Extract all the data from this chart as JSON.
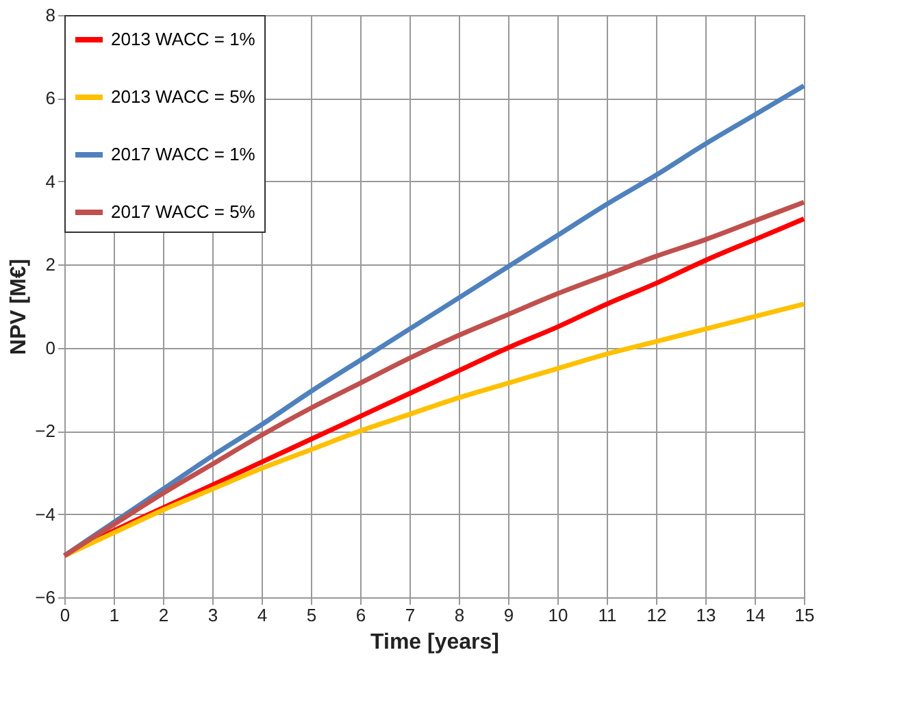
{
  "chart_data": {
    "type": "line",
    "xlabel": "Time [years]",
    "ylabel": "NPV [M€]",
    "x": [
      0,
      1,
      2,
      3,
      4,
      5,
      6,
      7,
      8,
      9,
      10,
      11,
      12,
      13,
      14,
      15
    ],
    "series": [
      {
        "name": "2013 WACC = 1%",
        "color": "#ff0000",
        "values": [
          -5,
          -4.4,
          -3.85,
          -3.3,
          -2.75,
          -2.2,
          -1.65,
          -1.1,
          -0.55,
          0,
          0.5,
          1.05,
          1.55,
          2.1,
          2.6,
          3.1
        ]
      },
      {
        "name": "2013 WACC = 5%",
        "color": "#ffc000",
        "values": [
          -5,
          -4.45,
          -3.9,
          -3.4,
          -2.9,
          -2.45,
          -2.0,
          -1.6,
          -1.2,
          -0.85,
          -0.5,
          -0.15,
          0.15,
          0.45,
          0.75,
          1.05
        ]
      },
      {
        "name": "2017 WACC = 1%",
        "color": "#4f81bd",
        "values": [
          -5,
          -4.2,
          -3.4,
          -2.6,
          -1.85,
          -1.05,
          -0.3,
          0.45,
          1.2,
          1.95,
          2.7,
          3.45,
          4.15,
          4.9,
          5.6,
          6.3
        ]
      },
      {
        "name": "2017 WACC = 5%",
        "color": "#c0504d",
        "values": [
          -5,
          -4.25,
          -3.5,
          -2.8,
          -2.1,
          -1.45,
          -0.85,
          -0.25,
          0.3,
          0.8,
          1.3,
          1.75,
          2.2,
          2.6,
          3.05,
          3.5
        ]
      }
    ],
    "xlim": [
      0,
      15
    ],
    "xticks": [
      0,
      1,
      2,
      3,
      4,
      5,
      6,
      7,
      8,
      9,
      10,
      11,
      12,
      13,
      14,
      15
    ],
    "ylim": [
      -6,
      8
    ],
    "yticks": [
      -6,
      -4,
      -2,
      0,
      2,
      4,
      6,
      8
    ],
    "grid": true,
    "legend": "top left",
    "marker": "none",
    "line_style": "solid"
  }
}
